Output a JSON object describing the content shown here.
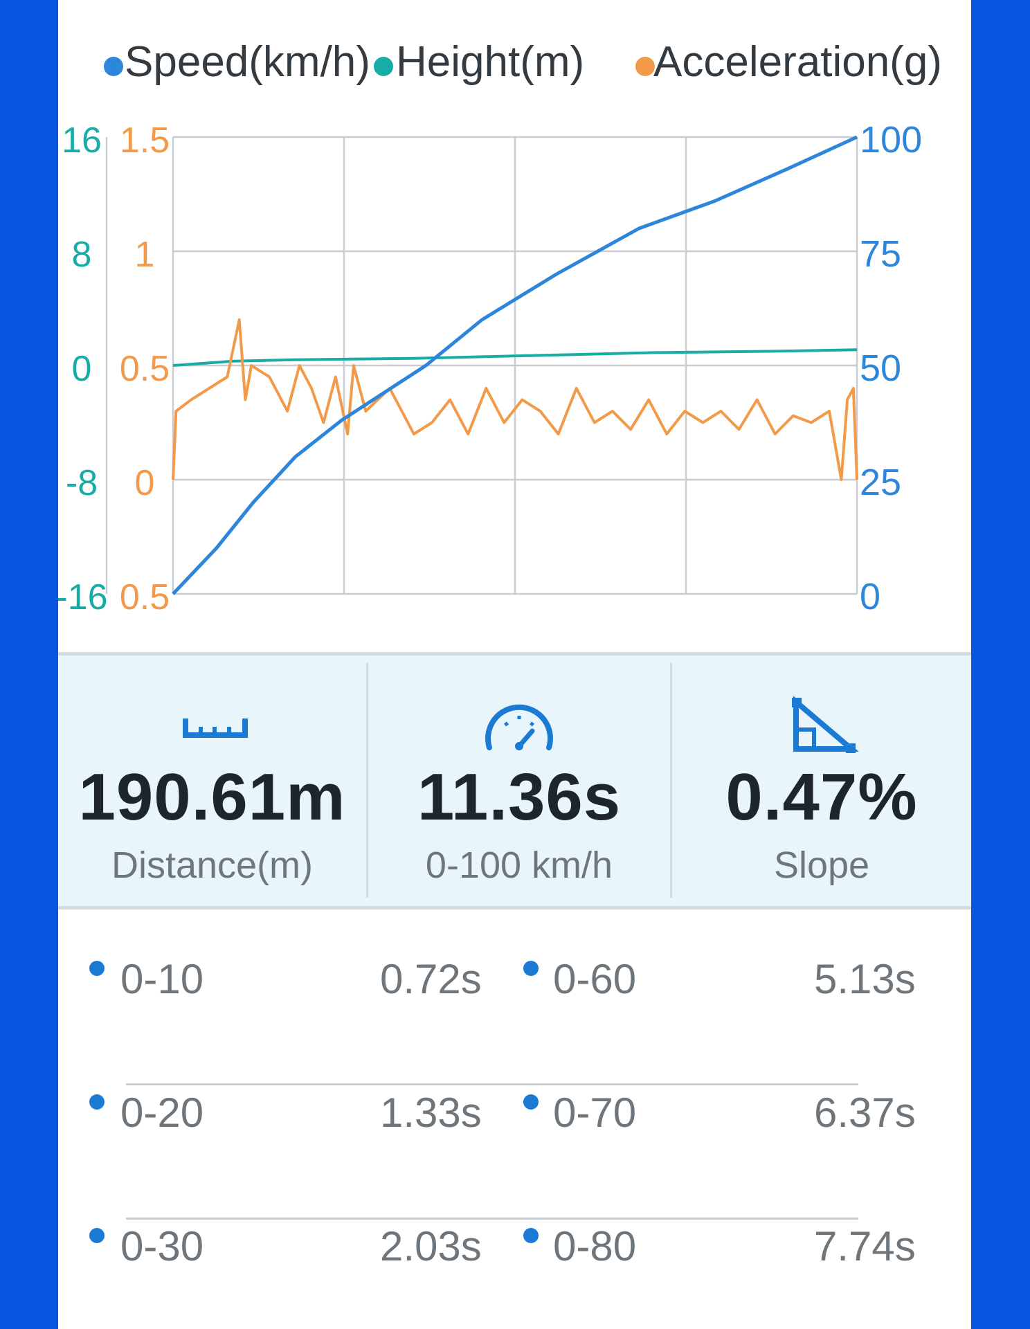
{
  "legend": [
    {
      "label": "Speed(km/h)",
      "color": "#2E86DA"
    },
    {
      "label": "Height(m)",
      "color": "#17ADA6"
    },
    {
      "label": "Acceleration(g)",
      "color": "#F29A4A"
    }
  ],
  "chart_data": {
    "type": "line",
    "axes": {
      "height_left": {
        "ticks": [
          "16",
          "8",
          "0",
          "-8",
          "-16"
        ],
        "ylim": [
          -16,
          16
        ],
        "color": "#17ADA6"
      },
      "accel_left": {
        "ticks": [
          "1.5",
          "1",
          "0.5",
          "0",
          "0.5"
        ],
        "ylim": [
          -0.5,
          1.5
        ],
        "color": "#F29A4A"
      },
      "speed_right": {
        "ticks": [
          "100",
          "75",
          "50",
          "25",
          "0"
        ],
        "ylim": [
          0,
          100
        ],
        "color": "#2E86DA"
      }
    },
    "x_range": [
      0,
      11.36
    ],
    "grid": true,
    "series": [
      {
        "name": "Speed(km/h)",
        "axis": "speed_right",
        "color": "#2E86DA",
        "x": [
          0,
          0.72,
          1.33,
          2.03,
          2.8,
          3.5,
          4.2,
          5.13,
          6.37,
          7.74,
          9.0,
          10.2,
          11.36
        ],
        "y": [
          0,
          10,
          20,
          30,
          38,
          44,
          50,
          60,
          70,
          80,
          86,
          93,
          100
        ]
      },
      {
        "name": "Height(m)",
        "axis": "height_left",
        "color": "#17ADA6",
        "x": [
          0,
          1.0,
          2.0,
          4.0,
          6.0,
          8.0,
          10.0,
          11.36
        ],
        "y": [
          0.0,
          0.3,
          0.4,
          0.5,
          0.7,
          0.9,
          1.0,
          1.1
        ]
      },
      {
        "name": "Acceleration(g)",
        "axis": "accel_left",
        "color": "#F29A4A",
        "x": [
          0,
          0.05,
          0.3,
          0.6,
          0.9,
          1.1,
          1.2,
          1.3,
          1.6,
          1.9,
          2.1,
          2.3,
          2.5,
          2.7,
          2.9,
          3.0,
          3.2,
          3.4,
          3.6,
          3.8,
          4.0,
          4.3,
          4.6,
          4.9,
          5.2,
          5.5,
          5.8,
          6.1,
          6.4,
          6.7,
          7.0,
          7.3,
          7.6,
          7.9,
          8.2,
          8.5,
          8.8,
          9.1,
          9.4,
          9.7,
          10.0,
          10.3,
          10.6,
          10.9,
          11.1,
          11.2,
          11.3,
          11.36
        ],
        "y": [
          0.0,
          0.3,
          0.35,
          0.4,
          0.45,
          0.7,
          0.35,
          0.5,
          0.45,
          0.3,
          0.5,
          0.4,
          0.25,
          0.45,
          0.2,
          0.5,
          0.3,
          0.35,
          0.4,
          0.3,
          0.2,
          0.25,
          0.35,
          0.2,
          0.4,
          0.25,
          0.35,
          0.3,
          0.2,
          0.4,
          0.25,
          0.3,
          0.22,
          0.35,
          0.2,
          0.3,
          0.25,
          0.3,
          0.22,
          0.35,
          0.2,
          0.28,
          0.25,
          0.3,
          0.0,
          0.35,
          0.4,
          0.0
        ]
      }
    ]
  },
  "stats": [
    {
      "icon": "ruler-icon",
      "value": "190.61m",
      "label": "Distance(m)"
    },
    {
      "icon": "speedometer-icon",
      "value": "11.36s",
      "label": "0-100 km/h"
    },
    {
      "icon": "slope-icon",
      "value": "0.47%",
      "label": "Slope"
    }
  ],
  "splits": [
    [
      {
        "range": "0-10",
        "time": "0.72s"
      },
      {
        "range": "0-60",
        "time": "5.13s"
      }
    ],
    [
      {
        "range": "0-20",
        "time": "1.33s"
      },
      {
        "range": "0-70",
        "time": "6.37s"
      }
    ],
    [
      {
        "range": "0-30",
        "time": "2.03s"
      },
      {
        "range": "0-80",
        "time": "7.74s"
      }
    ]
  ],
  "colors": {
    "frame_blue": "#0A55DF",
    "accent_icon": "#1A7AD4",
    "split_dot": "#1A7AD4"
  }
}
